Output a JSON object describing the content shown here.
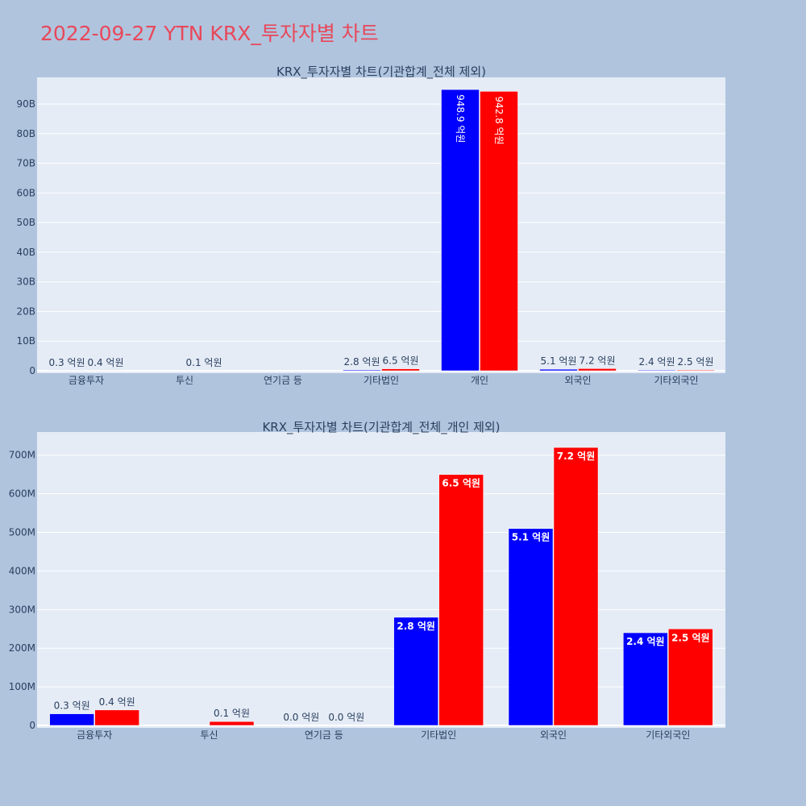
{
  "page_title": "2022-09-27 YTN KRX_투자자별 차트",
  "colors": {
    "buy": "#0000ff",
    "sell": "#ff0000",
    "plot_bg": "#e5ecf6",
    "page_bg": "#b0c4de",
    "title": "#e8485a"
  },
  "chart_data": [
    {
      "type": "bar",
      "title": "KRX_투자자별 차트(기관합계_전체 제외)",
      "categories": [
        "금융투자",
        "투신",
        "연기금 등",
        "기타법인",
        "개인",
        "외국인",
        "기타외국인"
      ],
      "series": [
        {
          "values": [
            30000000,
            0,
            0,
            280000000,
            94890000000,
            510000000,
            240000000
          ],
          "labels": [
            "0.3 억원",
            "",
            "",
            "2.8 억원",
            "948.9 억원",
            "5.1 억원",
            "2.4 억원"
          ]
        },
        {
          "values": [
            40000000,
            10000000,
            0,
            650000000,
            94280000000,
            720000000,
            250000000
          ],
          "labels": [
            "0.4 억원",
            "0.1 억원",
            "",
            "6.5 억원",
            "942.8 억원",
            "7.2 억원",
            "2.5 억원"
          ]
        }
      ],
      "ylim": [
        0,
        99000000000
      ],
      "yticks": [
        0,
        10000000000,
        20000000000,
        30000000000,
        40000000000,
        50000000000,
        60000000000,
        70000000000,
        80000000000,
        90000000000
      ],
      "ytick_labels": [
        "0",
        "10B",
        "20B",
        "30B",
        "40B",
        "50B",
        "60B",
        "70B",
        "80B",
        "90B"
      ],
      "grid": true,
      "legend": "none"
    },
    {
      "type": "bar",
      "title": "KRX_투자자별 차트(기관합계_전체_개인 제외)",
      "categories": [
        "금융투자",
        "투신",
        "연기금 등",
        "기타법인",
        "외국인",
        "기타외국인"
      ],
      "series": [
        {
          "values": [
            30000000,
            0,
            0,
            280000000,
            510000000,
            240000000
          ],
          "labels": [
            "0.3 억원",
            "",
            "0.0 억원",
            "2.8 억원",
            "5.1 억원",
            "2.4 억원"
          ]
        },
        {
          "values": [
            40000000,
            10000000,
            0,
            650000000,
            720000000,
            250000000
          ],
          "labels": [
            "0.4 억원",
            "0.1 억원",
            "0.0 억원",
            "6.5 억원",
            "7.2 억원",
            "2.5 억원"
          ]
        }
      ],
      "ylim": [
        0,
        760000000
      ],
      "yticks": [
        0,
        100000000,
        200000000,
        300000000,
        400000000,
        500000000,
        600000000,
        700000000
      ],
      "ytick_labels": [
        "0",
        "100M",
        "200M",
        "300M",
        "400M",
        "500M",
        "600M",
        "700M"
      ],
      "grid": true,
      "legend": "none"
    }
  ]
}
